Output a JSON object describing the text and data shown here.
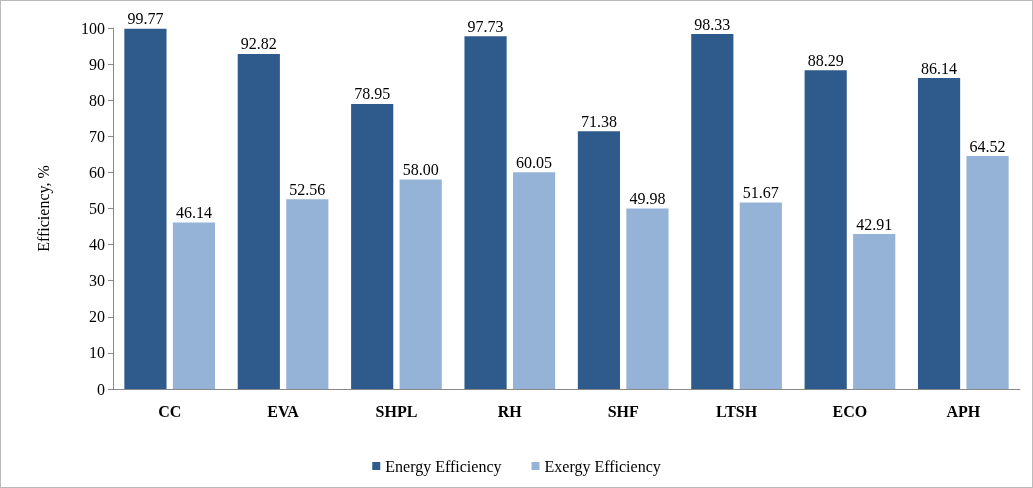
{
  "chart_data": {
    "type": "bar",
    "ylabel": "Efficiency, %",
    "categories": [
      "CC",
      "EVA",
      "SHPL",
      "RH",
      "SHF",
      "LTSH",
      "ECO",
      "APH"
    ],
    "series": [
      {
        "name": "Energy Efficiency",
        "color": "#2e5b8c",
        "values": [
          99.77,
          92.82,
          78.95,
          97.73,
          71.38,
          98.33,
          88.29,
          86.14
        ],
        "value_labels": [
          "99.77",
          "92.82",
          "78.95",
          "97.73",
          "71.38",
          "98.33",
          "88.29",
          "86.14"
        ]
      },
      {
        "name": "Exergy Efficiency",
        "color": "#95b3d7",
        "values": [
          46.14,
          52.56,
          58.0,
          60.05,
          49.98,
          51.67,
          42.91,
          64.52
        ],
        "value_labels": [
          "46.14",
          "52.56",
          "58.00",
          "60.05",
          "49.98",
          "51.67",
          "42.91",
          "64.52"
        ]
      }
    ],
    "ylim": [
      0,
      100
    ],
    "yticks": [
      0,
      10,
      20,
      30,
      40,
      50,
      60,
      70,
      80,
      90,
      100
    ],
    "grid": false,
    "legend": "bottom"
  }
}
